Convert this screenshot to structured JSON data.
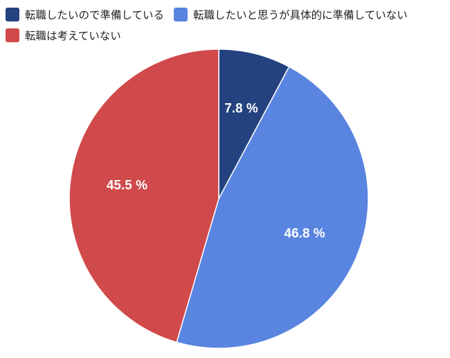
{
  "chart_data": {
    "type": "pie",
    "title": "",
    "legend_position": "top-left",
    "categories": [
      "転職したいので準備している",
      "転職したいと思うが具体的に準備していない",
      "転職は考えていない"
    ],
    "values": [
      7.8,
      46.8,
      45.5
    ],
    "data_labels": [
      "7.8 %",
      "46.8 %",
      "45.5 %"
    ],
    "colors": [
      "#24427f",
      "#5984e0",
      "#d0494b"
    ],
    "start_angle": "12 o'clock",
    "direction": "clockwise"
  }
}
